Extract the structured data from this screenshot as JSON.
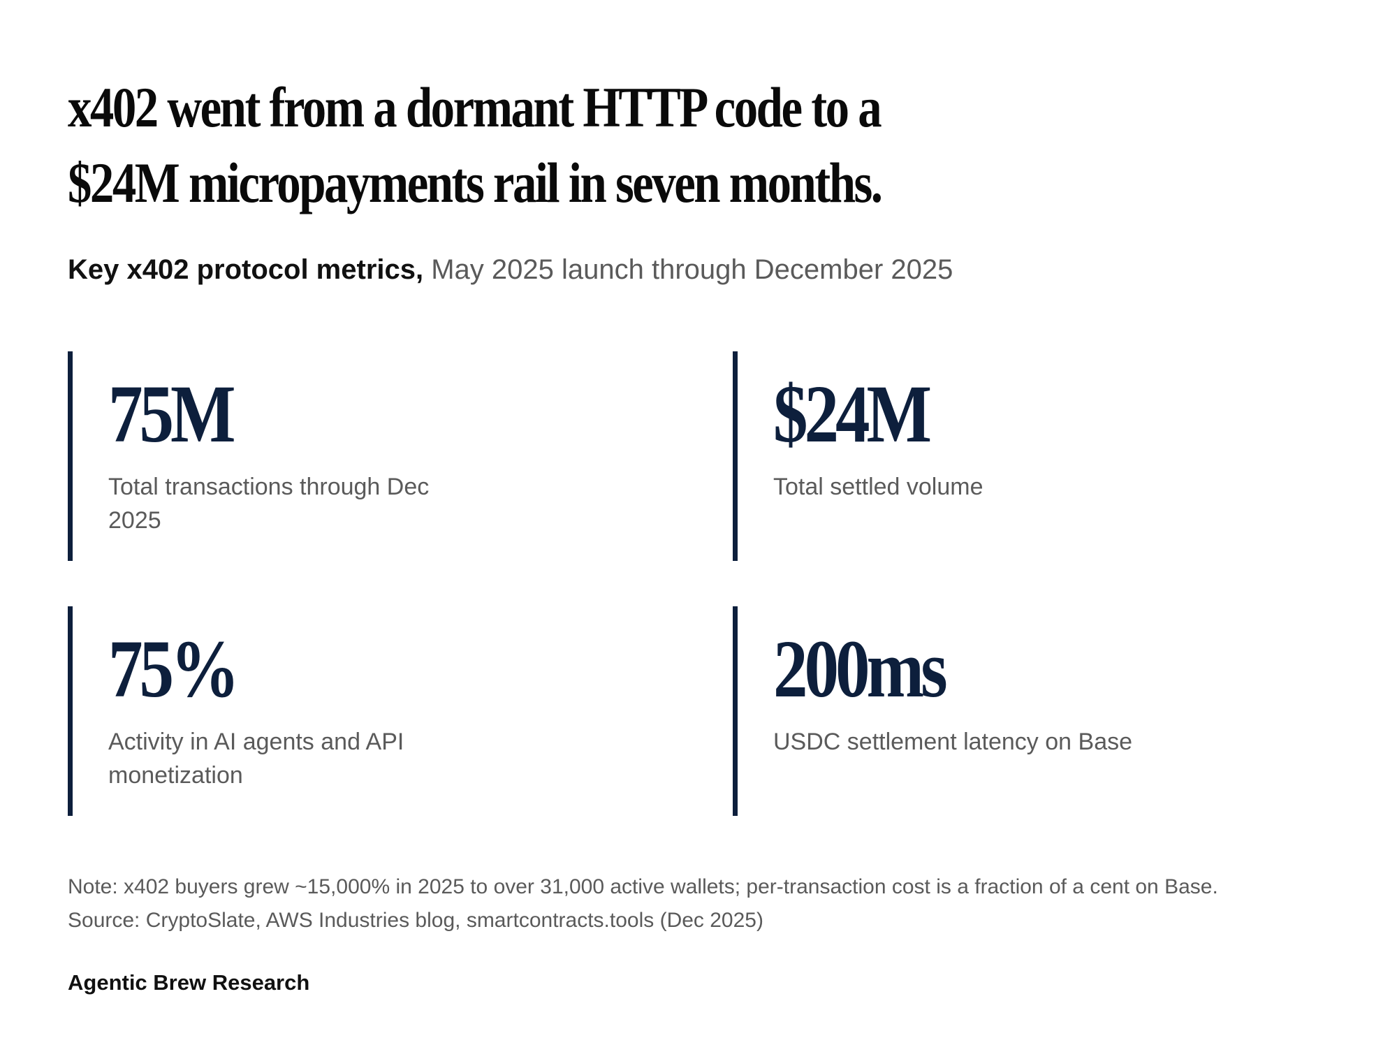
{
  "headline": "x402 went from a dormant HTTP code to a $24M micropayments rail in seven months.",
  "subtitle": {
    "bold": "Key x402 protocol metrics,",
    "light": " May 2025 launch through December 2025"
  },
  "metrics": [
    {
      "value": "75M",
      "label": "Total transactions through Dec 2025"
    },
    {
      "value": "$24M",
      "label": "Total settled volume"
    },
    {
      "value": "75%",
      "label": "Activity in AI agents and API monetization"
    },
    {
      "value": "200ms",
      "label": "USDC settlement latency on Base"
    }
  ],
  "footer": {
    "note": "Note: x402 buyers grew ~15,000% in 2025 to over 31,000 active wallets; per-transaction cost is a fraction of a cent on Base.",
    "source": "Source: CryptoSlate, AWS Industries blog, smartcontracts.tools (Dec 2025)",
    "branding": "Agentic Brew Research"
  },
  "colors": {
    "accent": "#0d1f3c",
    "muted_text": "#5a5a5a",
    "background": "#ffffff"
  }
}
